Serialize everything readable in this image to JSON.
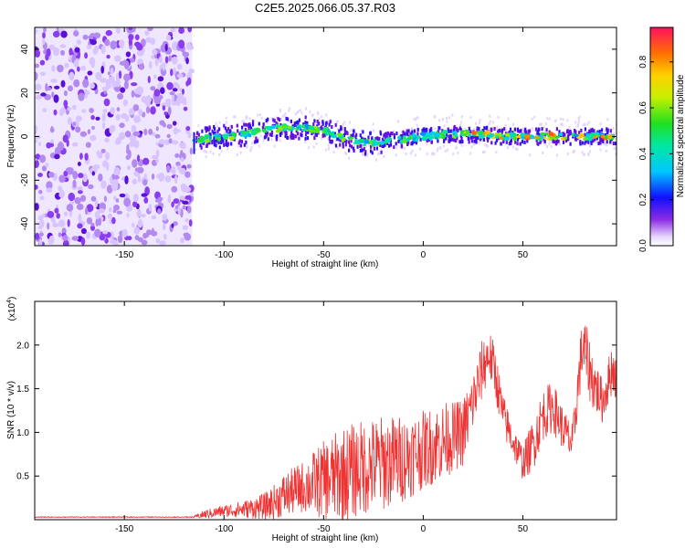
{
  "title": "C2E5.2025.066.05.37.R03",
  "chart_data": [
    {
      "type": "heatmap",
      "xlabel": "Height of straight line (km)",
      "ylabel": "Frequency (Hz)",
      "xlim": [
        -195,
        97
      ],
      "ylim": [
        -50,
        50
      ],
      "xticks": [
        "-150",
        "-100",
        "-50",
        "0",
        "50"
      ],
      "yticks": [
        "40",
        "20",
        "0",
        "-20",
        "-40"
      ],
      "noise_region_x": [
        -195,
        -116
      ],
      "signal_trace": {
        "x": [
          -115,
          -110,
          -100,
          -90,
          -80,
          -70,
          -60,
          -50,
          -45,
          -40,
          -35,
          -30,
          -25,
          -20,
          -10,
          0,
          10,
          20,
          30,
          40,
          50,
          60,
          70,
          80,
          90,
          97
        ],
        "freq": [
          -2,
          -1,
          0,
          1,
          3,
          4,
          4,
          3,
          1,
          -1,
          -2,
          -3,
          -3,
          -2,
          -1,
          0,
          1,
          1,
          1,
          0,
          0,
          0,
          0,
          0,
          0,
          0
        ]
      },
      "colorbar": {
        "label": "Normalized spectral amplitude",
        "range": [
          0,
          0.95
        ],
        "ticks": [
          "0.0",
          "0.2",
          "0.4",
          "0.6",
          "0.8"
        ]
      }
    },
    {
      "type": "line",
      "xlabel": "Height of straight line (km)",
      "ylabel": "SNR (10 * v/v)",
      "multiplier": "(x10",
      "multiplier_exp": "4",
      "multiplier_close": ")",
      "xlim": [
        -195,
        97
      ],
      "ylim": [
        0,
        2.5
      ],
      "xticks": [
        "-150",
        "-100",
        "-50",
        "0",
        "50"
      ],
      "yticks": [
        "0.5",
        "1.0",
        "1.5",
        "2.0"
      ],
      "color": "#ee3333",
      "envelope": {
        "x": [
          -195,
          -115,
          -110,
          -100,
          -90,
          -80,
          -75,
          -70,
          -60,
          -50,
          -40,
          -30,
          -20,
          -10,
          0,
          10,
          15,
          20,
          25,
          30,
          33,
          36,
          40,
          45,
          50,
          55,
          60,
          65,
          70,
          75,
          78,
          80,
          85,
          90,
          95,
          97
        ],
        "mid": [
          0.03,
          0.03,
          0.06,
          0.1,
          0.12,
          0.15,
          0.2,
          0.28,
          0.38,
          0.45,
          0.52,
          0.6,
          0.65,
          0.7,
          0.8,
          0.9,
          0.95,
          1.0,
          1.35,
          1.75,
          1.9,
          1.7,
          1.2,
          0.9,
          0.65,
          0.85,
          1.2,
          1.3,
          1.05,
          0.85,
          1.6,
          2.0,
          1.6,
          1.35,
          1.75,
          1.6
        ],
        "amp": [
          0.0,
          0.01,
          0.05,
          0.07,
          0.1,
          0.15,
          0.2,
          0.25,
          0.3,
          0.45,
          0.55,
          0.55,
          0.55,
          0.5,
          0.45,
          0.45,
          0.4,
          0.4,
          0.35,
          0.35,
          0.3,
          0.3,
          0.25,
          0.2,
          0.2,
          0.3,
          0.3,
          0.3,
          0.25,
          0.25,
          0.3,
          0.4,
          0.35,
          0.25,
          0.3,
          0.25
        ]
      }
    }
  ]
}
